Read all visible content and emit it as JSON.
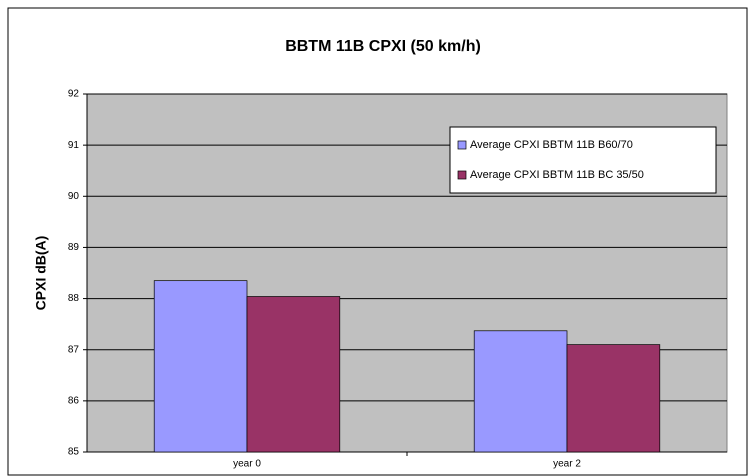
{
  "chart_data": {
    "type": "bar",
    "title": "BBTM 11B  CPXI (50 km/h)",
    "y_label": "CPXI dB(A)",
    "categories": [
      "year 0",
      "year 2"
    ],
    "series": [
      {
        "name": "Average CPXI BBTM 11B B60/70",
        "color": "#9999ff",
        "values": [
          88.35,
          87.37
        ]
      },
      {
        "name": "Average CPXI BBTM 11B BC 35/50",
        "color": "#993366",
        "values": [
          88.04,
          87.1
        ]
      }
    ],
    "ylim": [
      85,
      92
    ],
    "yticks": [
      85,
      86,
      87,
      88,
      89,
      90,
      91,
      92
    ],
    "grid": true,
    "legend": "upper right"
  }
}
